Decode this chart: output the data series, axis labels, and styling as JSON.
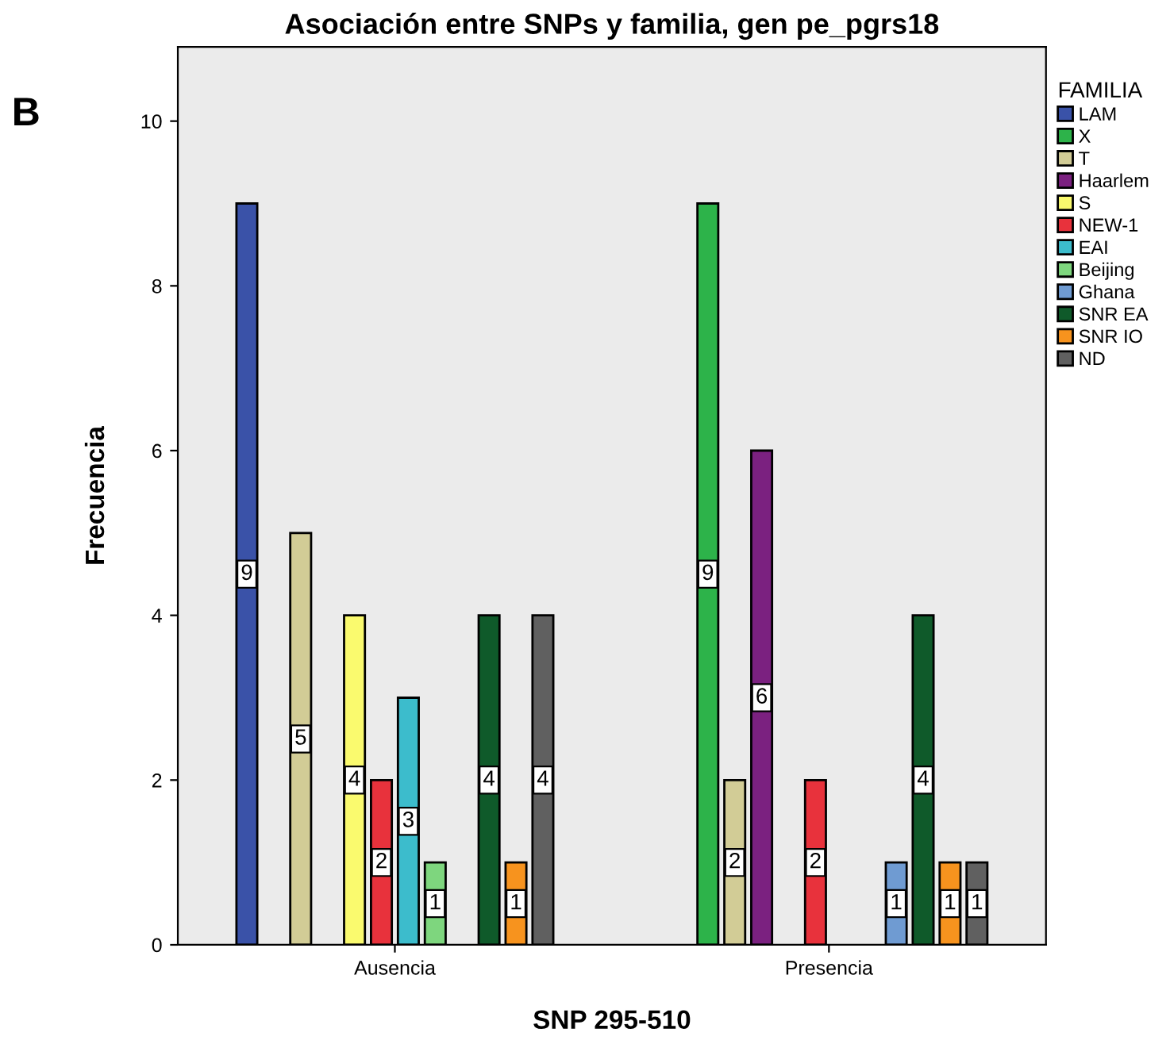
{
  "chart_data": {
    "type": "bar",
    "title": "Asociación entre SNPs y familia, gen pe_pgrs18",
    "xlabel": "SNP 295-510",
    "ylabel": "Frecuencia",
    "legend_title": "FAMILIA",
    "categories": [
      "Ausencia",
      "Presencia"
    ],
    "series": [
      {
        "name": "LAM",
        "color": "#3a52a8",
        "values": [
          9,
          null
        ],
        "value_labels": [
          "9",
          null
        ]
      },
      {
        "name": "X",
        "color": "#2db34a",
        "values": [
          null,
          9
        ],
        "value_labels": [
          null,
          "9"
        ]
      },
      {
        "name": "T",
        "color": "#d2cc96",
        "values": [
          5,
          2
        ],
        "value_labels": [
          "5",
          "2"
        ]
      },
      {
        "name": "Haarlem",
        "color": "#7b2180",
        "values": [
          null,
          6
        ],
        "value_labels": [
          null,
          "6"
        ]
      },
      {
        "name": "S",
        "color": "#fafa6e",
        "values": [
          4,
          null
        ],
        "value_labels": [
          "4",
          null
        ]
      },
      {
        "name": "NEW-1",
        "color": "#e8323c",
        "values": [
          2,
          2
        ],
        "value_labels": [
          "2",
          "2"
        ]
      },
      {
        "name": "EAI",
        "color": "#3cbccc",
        "values": [
          3,
          null
        ],
        "value_labels": [
          "3",
          null
        ]
      },
      {
        "name": "Beijing",
        "color": "#7ed67e",
        "values": [
          1,
          null
        ],
        "value_labels": [
          "1",
          null
        ]
      },
      {
        "name": "Ghana",
        "color": "#6f9bd2",
        "values": [
          null,
          1
        ],
        "value_labels": [
          null,
          "1"
        ]
      },
      {
        "name": "SNR EA",
        "color": "#0f5a2a",
        "values": [
          4,
          4
        ],
        "value_labels": [
          "4",
          "4"
        ]
      },
      {
        "name": "SNR IO",
        "color": "#f7931e",
        "values": [
          1,
          1
        ],
        "value_labels": [
          "1",
          "1"
        ]
      },
      {
        "name": "ND",
        "color": "#606060",
        "values": [
          4,
          1
        ],
        "value_labels": [
          "4",
          "1"
        ]
      }
    ],
    "ylim": [
      0,
      10.9
    ],
    "yticks": [
      0,
      2,
      4,
      6,
      8,
      10
    ],
    "grid": false,
    "legend": "right",
    "annotations": [
      "B"
    ]
  }
}
